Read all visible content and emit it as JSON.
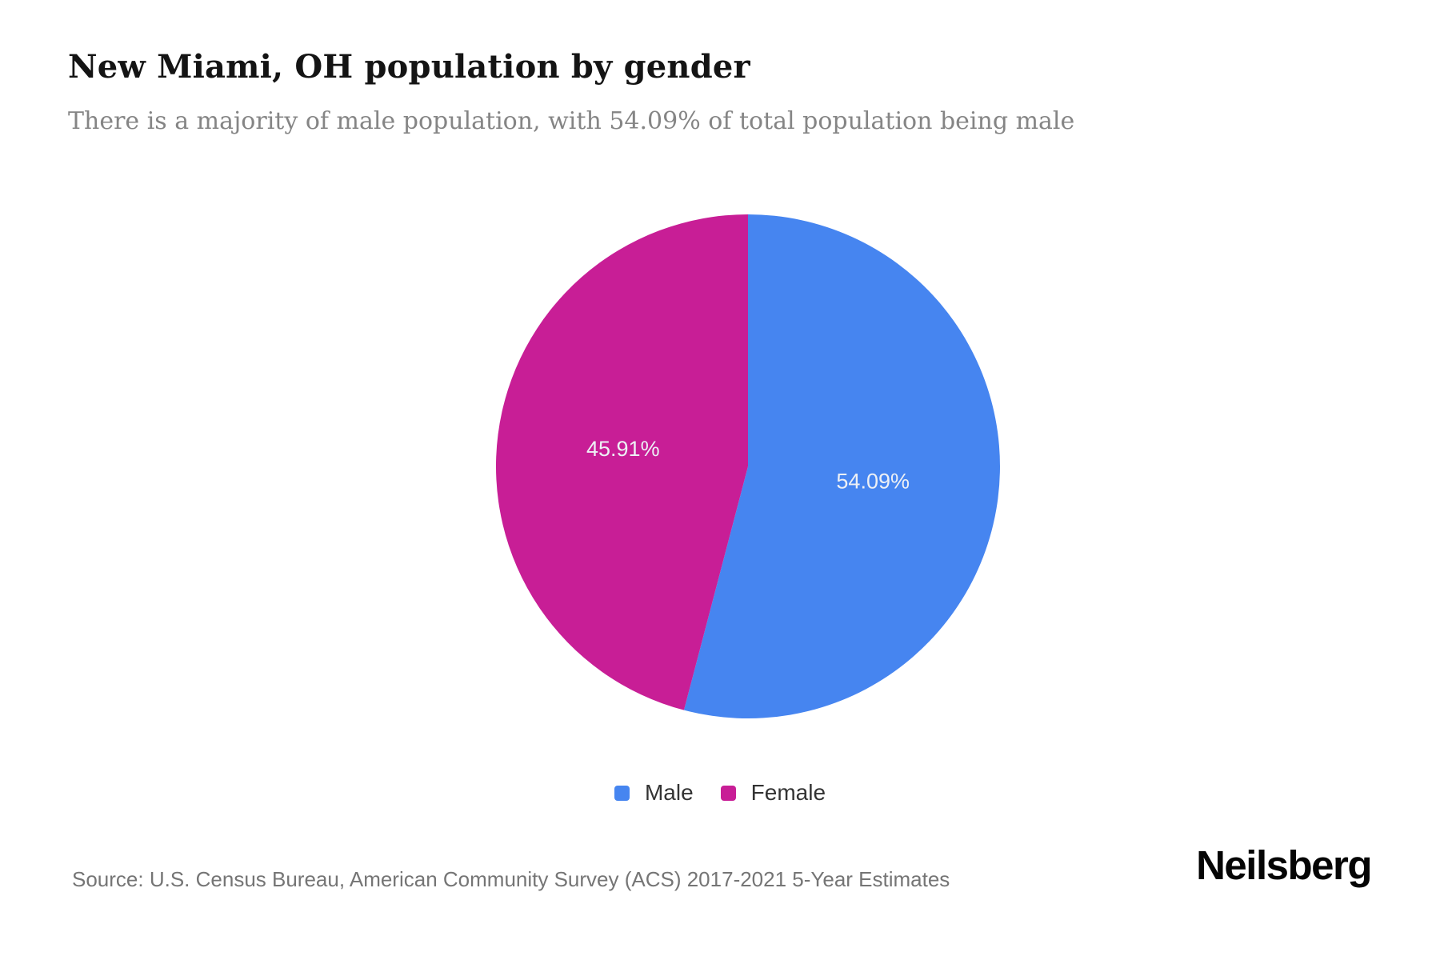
{
  "header": {
    "title": "New Miami, OH population by gender",
    "subtitle": "There is a majority of male population, with 54.09% of total population being male"
  },
  "chart_data": {
    "type": "pie",
    "title": "New Miami, OH population by gender",
    "categories": [
      "Male",
      "Female"
    ],
    "series": [
      {
        "name": "Male",
        "value": 54.09,
        "display_label": "54.09%",
        "color": "#4685F0"
      },
      {
        "name": "Female",
        "value": 45.91,
        "display_label": "45.91%",
        "color": "#C81E96"
      }
    ],
    "units": "%",
    "start_angle_deg": 0,
    "direction": "clockwise",
    "slice_label_color": "#edf0f5",
    "legend_position": "bottom"
  },
  "footer": {
    "source": "Source: U.S. Census Bureau, American Community Survey (ACS) 2017-2021 5-Year Estimates",
    "brand": "Neilsberg"
  }
}
